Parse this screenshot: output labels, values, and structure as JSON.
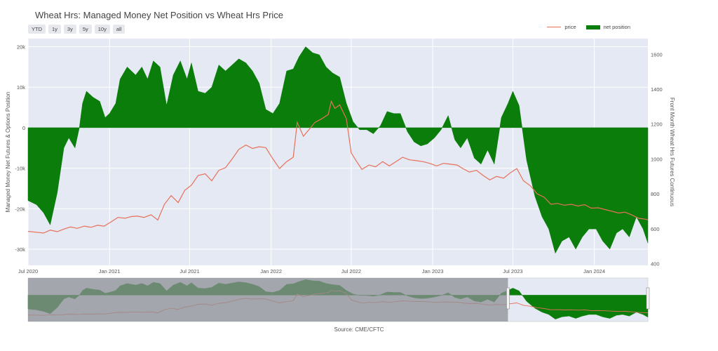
{
  "title": "Wheat Hrs: Managed Money Net Position vs Wheat Hrs Price",
  "range_buttons": [
    "YTD",
    "1y",
    "3y",
    "5y",
    "10y",
    "all"
  ],
  "legend": {
    "price": "price",
    "net": "net position"
  },
  "source": "Source: CME/CFTC",
  "colors": {
    "price": "#e8705a",
    "net": "#0b7d0b",
    "plot_bg": "#e5e9f3",
    "rangeslider_mask": "#8d8f96"
  },
  "chart_data": {
    "type": "area",
    "xlabel": "",
    "ylabel_left": "Managed Money Net Futures & Options Position",
    "ylabel_right": "Front Month Wheat Hrs Futures Continuous",
    "x_range": [
      "2020-07-01",
      "2024-05-01"
    ],
    "x_ticks": [
      {
        "date": "2020-07-01",
        "label": "Jul 2020"
      },
      {
        "date": "2021-01-01",
        "label": "Jan 2021"
      },
      {
        "date": "2021-07-01",
        "label": "Jul 2021"
      },
      {
        "date": "2022-01-01",
        "label": "Jan 2022"
      },
      {
        "date": "2022-07-01",
        "label": "Jul 2022"
      },
      {
        "date": "2023-01-01",
        "label": "Jan 2023"
      },
      {
        "date": "2023-07-01",
        "label": "Jul 2023"
      },
      {
        "date": "2024-01-01",
        "label": "Jan 2024"
      }
    ],
    "y_left_range": [
      -34000,
      22000
    ],
    "y_left_ticks": [
      {
        "value": 20000,
        "label": "20k"
      },
      {
        "value": 10000,
        "label": "10k"
      },
      {
        "value": 0,
        "label": "0"
      },
      {
        "value": -10000,
        "label": "-10k"
      },
      {
        "value": -20000,
        "label": "-20k"
      },
      {
        "value": -30000,
        "label": "-30k"
      }
    ],
    "y_right_range": [
      390,
      1690
    ],
    "y_right_ticks": [
      400,
      600,
      800,
      1000,
      1200,
      1400,
      1600
    ],
    "rangeslider": {
      "selected_start": "2023-06-20",
      "selected_end": "2024-05-01"
    },
    "series": [
      {
        "name": "net position",
        "axis": "left",
        "points": [
          [
            "2020-07-01",
            -18000
          ],
          [
            "2020-07-20",
            -19000
          ],
          [
            "2020-08-05",
            -21000
          ],
          [
            "2020-08-20",
            -24000
          ],
          [
            "2020-09-05",
            -16000
          ],
          [
            "2020-09-20",
            -5000
          ],
          [
            "2020-10-01",
            -2500
          ],
          [
            "2020-10-15",
            -5000
          ],
          [
            "2020-10-25",
            0
          ],
          [
            "2020-11-01",
            6000
          ],
          [
            "2020-11-10",
            9000
          ],
          [
            "2020-11-25",
            7500
          ],
          [
            "2020-12-10",
            6500
          ],
          [
            "2020-12-22",
            2500
          ],
          [
            "2021-01-01",
            3500
          ],
          [
            "2021-01-15",
            6000
          ],
          [
            "2021-01-25",
            12000
          ],
          [
            "2021-02-10",
            15000
          ],
          [
            "2021-03-01",
            13000
          ],
          [
            "2021-03-15",
            15000
          ],
          [
            "2021-03-28",
            12000
          ],
          [
            "2021-04-10",
            16500
          ],
          [
            "2021-04-25",
            15000
          ],
          [
            "2021-05-10",
            5500
          ],
          [
            "2021-05-25",
            13000
          ],
          [
            "2021-06-10",
            16500
          ],
          [
            "2021-06-25",
            12000
          ],
          [
            "2021-07-05",
            16000
          ],
          [
            "2021-07-20",
            9000
          ],
          [
            "2021-08-05",
            8500
          ],
          [
            "2021-08-20",
            10000
          ],
          [
            "2021-09-05",
            15500
          ],
          [
            "2021-09-20",
            14000
          ],
          [
            "2021-10-05",
            15500
          ],
          [
            "2021-10-20",
            17000
          ],
          [
            "2021-11-05",
            16000
          ],
          [
            "2021-11-20",
            14000
          ],
          [
            "2021-12-05",
            11000
          ],
          [
            "2021-12-20",
            4500
          ],
          [
            "2022-01-05",
            3500
          ],
          [
            "2022-01-20",
            6000
          ],
          [
            "2022-02-05",
            14000
          ],
          [
            "2022-02-20",
            14500
          ],
          [
            "2022-03-05",
            17500
          ],
          [
            "2022-03-20",
            20000
          ],
          [
            "2022-04-05",
            18500
          ],
          [
            "2022-04-20",
            18000
          ],
          [
            "2022-05-05",
            15000
          ],
          [
            "2022-05-20",
            13500
          ],
          [
            "2022-06-05",
            12500
          ],
          [
            "2022-06-20",
            6000
          ],
          [
            "2022-07-05",
            1500
          ],
          [
            "2022-07-20",
            -500
          ],
          [
            "2022-08-05",
            -500
          ],
          [
            "2022-08-20",
            -1500
          ],
          [
            "2022-09-05",
            500
          ],
          [
            "2022-09-20",
            4000
          ],
          [
            "2022-10-05",
            3500
          ],
          [
            "2022-10-20",
            3500
          ],
          [
            "2022-11-05",
            -1000
          ],
          [
            "2022-11-20",
            -3500
          ],
          [
            "2022-12-05",
            -4500
          ],
          [
            "2022-12-20",
            -4000
          ],
          [
            "2023-01-05",
            -2500
          ],
          [
            "2023-01-20",
            -500
          ],
          [
            "2023-02-05",
            3000
          ],
          [
            "2023-02-20",
            -3000
          ],
          [
            "2023-03-05",
            -5000
          ],
          [
            "2023-03-20",
            -2500
          ],
          [
            "2023-04-05",
            -7500
          ],
          [
            "2023-04-20",
            -9000
          ],
          [
            "2023-05-05",
            -5500
          ],
          [
            "2023-05-20",
            -9000
          ],
          [
            "2023-06-05",
            2500
          ],
          [
            "2023-06-20",
            6000
          ],
          [
            "2023-07-01",
            9000
          ],
          [
            "2023-07-15",
            5500
          ],
          [
            "2023-08-01",
            -8000
          ],
          [
            "2023-08-20",
            -17000
          ],
          [
            "2023-09-05",
            -22000
          ],
          [
            "2023-09-20",
            -25000
          ],
          [
            "2023-10-05",
            -31000
          ],
          [
            "2023-10-20",
            -28000
          ],
          [
            "2023-11-05",
            -27000
          ],
          [
            "2023-11-20",
            -30000
          ],
          [
            "2023-12-05",
            -27000
          ],
          [
            "2023-12-20",
            -25000
          ],
          [
            "2024-01-05",
            -25000
          ],
          [
            "2024-01-20",
            -28000
          ],
          [
            "2024-02-05",
            -30000
          ],
          [
            "2024-02-20",
            -26000
          ],
          [
            "2024-03-05",
            -25000
          ],
          [
            "2024-03-20",
            -27000
          ],
          [
            "2024-04-05",
            -22000
          ],
          [
            "2024-04-20",
            -25000
          ],
          [
            "2024-05-01",
            -28500
          ]
        ]
      },
      {
        "name": "price",
        "axis": "right",
        "points": [
          [
            "2020-07-01",
            585
          ],
          [
            "2020-07-20",
            580
          ],
          [
            "2020-08-05",
            575
          ],
          [
            "2020-08-20",
            592
          ],
          [
            "2020-09-05",
            583
          ],
          [
            "2020-09-20",
            598
          ],
          [
            "2020-10-05",
            610
          ],
          [
            "2020-10-20",
            602
          ],
          [
            "2020-11-05",
            615
          ],
          [
            "2020-11-20",
            608
          ],
          [
            "2020-12-05",
            620
          ],
          [
            "2020-12-20",
            615
          ],
          [
            "2021-01-05",
            640
          ],
          [
            "2021-01-20",
            665
          ],
          [
            "2021-02-05",
            660
          ],
          [
            "2021-02-20",
            670
          ],
          [
            "2021-03-05",
            672
          ],
          [
            "2021-03-20",
            665
          ],
          [
            "2021-04-05",
            680
          ],
          [
            "2021-04-20",
            650
          ],
          [
            "2021-05-05",
            740
          ],
          [
            "2021-05-20",
            790
          ],
          [
            "2021-06-05",
            750
          ],
          [
            "2021-06-20",
            820
          ],
          [
            "2021-07-05",
            850
          ],
          [
            "2021-07-20",
            905
          ],
          [
            "2021-08-05",
            915
          ],
          [
            "2021-08-20",
            875
          ],
          [
            "2021-09-05",
            935
          ],
          [
            "2021-09-20",
            950
          ],
          [
            "2021-10-05",
            1000
          ],
          [
            "2021-10-20",
            1055
          ],
          [
            "2021-11-05",
            1080
          ],
          [
            "2021-11-20",
            1060
          ],
          [
            "2021-12-05",
            1070
          ],
          [
            "2021-12-20",
            1065
          ],
          [
            "2022-01-05",
            1000
          ],
          [
            "2022-01-20",
            945
          ],
          [
            "2022-02-05",
            985
          ],
          [
            "2022-02-20",
            1010
          ],
          [
            "2022-03-01",
            1210
          ],
          [
            "2022-03-15",
            1130
          ],
          [
            "2022-03-28",
            1170
          ],
          [
            "2022-04-10",
            1210
          ],
          [
            "2022-04-25",
            1230
          ],
          [
            "2022-05-10",
            1255
          ],
          [
            "2022-05-17",
            1330
          ],
          [
            "2022-05-25",
            1290
          ],
          [
            "2022-06-05",
            1310
          ],
          [
            "2022-06-20",
            1230
          ],
          [
            "2022-07-01",
            1035
          ],
          [
            "2022-07-12",
            990
          ],
          [
            "2022-07-25",
            940
          ],
          [
            "2022-08-10",
            965
          ],
          [
            "2022-08-25",
            955
          ],
          [
            "2022-09-10",
            985
          ],
          [
            "2022-09-25",
            960
          ],
          [
            "2022-10-10",
            985
          ],
          [
            "2022-10-25",
            1010
          ],
          [
            "2022-11-10",
            995
          ],
          [
            "2022-11-25",
            990
          ],
          [
            "2022-12-10",
            985
          ],
          [
            "2022-12-25",
            975
          ],
          [
            "2023-01-10",
            960
          ],
          [
            "2023-01-25",
            975
          ],
          [
            "2023-02-10",
            970
          ],
          [
            "2023-02-25",
            965
          ],
          [
            "2023-03-10",
            945
          ],
          [
            "2023-03-25",
            925
          ],
          [
            "2023-04-10",
            935
          ],
          [
            "2023-04-25",
            905
          ],
          [
            "2023-05-10",
            880
          ],
          [
            "2023-05-25",
            900
          ],
          [
            "2023-06-10",
            890
          ],
          [
            "2023-06-25",
            920
          ],
          [
            "2023-07-10",
            945
          ],
          [
            "2023-07-25",
            875
          ],
          [
            "2023-08-10",
            845
          ],
          [
            "2023-08-25",
            800
          ],
          [
            "2023-09-10",
            780
          ],
          [
            "2023-09-25",
            740
          ],
          [
            "2023-10-10",
            745
          ],
          [
            "2023-10-25",
            735
          ],
          [
            "2023-11-10",
            740
          ],
          [
            "2023-11-25",
            730
          ],
          [
            "2023-12-10",
            738
          ],
          [
            "2023-12-25",
            718
          ],
          [
            "2024-01-10",
            720
          ],
          [
            "2024-01-25",
            710
          ],
          [
            "2024-02-10",
            700
          ],
          [
            "2024-02-25",
            690
          ],
          [
            "2024-03-10",
            695
          ],
          [
            "2024-03-25",
            680
          ],
          [
            "2024-04-10",
            660
          ],
          [
            "2024-04-25",
            655
          ],
          [
            "2024-05-01",
            650
          ]
        ]
      }
    ]
  }
}
